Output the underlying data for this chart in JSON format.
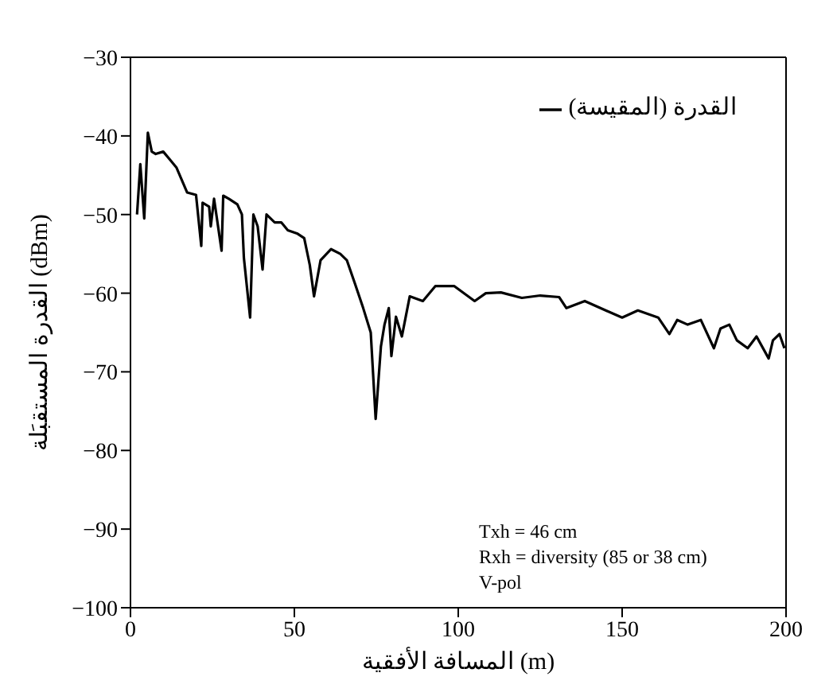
{
  "chart_data": {
    "type": "line",
    "xlabel": "المسافة الأفقية (m)",
    "ylabel": "القدرة المستقبَلة (dBm)",
    "xlim": [
      0,
      200
    ],
    "xticks": [
      0,
      50,
      100,
      150,
      200
    ],
    "ylim": [
      -100,
      -30
    ],
    "yticks": [
      -100,
      -90,
      -80,
      -70,
      -60,
      -50,
      -40,
      -30
    ],
    "legend": "top right",
    "marker": "none",
    "line_style": "solid",
    "annotations": [
      "Txh = 46 cm",
      "Rxh = diversity (85 or 38 cm)",
      "V-pol"
    ],
    "series": [
      {
        "name": "القدرة (المقيسة)",
        "color": "#000000",
        "x": [
          2,
          3,
          4.2,
          5.3,
          6.5,
          7.7,
          10,
          12,
          14,
          17.3,
          20,
          21.6,
          22,
          24,
          24.5,
          25.5,
          27.8,
          28.3,
          30,
          32.6,
          34,
          34.6,
          36.5,
          37.5,
          38.8,
          40.3,
          41.5,
          44,
          46,
          48,
          50.8,
          53,
          54.7,
          56,
          58,
          61.2,
          64,
          66,
          68.5,
          71,
          73.3,
          74.8,
          76.4,
          77.5,
          78.8,
          79.6,
          81,
          82.8,
          85.2,
          89.2,
          93,
          98.8,
          105,
          108.4,
          113,
          119.4,
          125,
          130.8,
          133,
          138.6,
          145,
          150,
          154.8,
          161,
          164.4,
          166.8,
          170,
          174,
          178,
          180,
          182.7,
          185,
          188.3,
          191,
          194.7,
          196,
          198,
          199.5
        ],
        "values": [
          -50,
          -43.6,
          -50.5,
          -39.6,
          -42,
          -42.3,
          -42,
          -43,
          -44,
          -47.2,
          -47.5,
          -54,
          -48.5,
          -49,
          -51.5,
          -48,
          -54.6,
          -47.6,
          -48,
          -48.7,
          -50,
          -55.5,
          -63.1,
          -50,
          -51.5,
          -57,
          -50,
          -51,
          -51,
          -52,
          -52.4,
          -53,
          -56.4,
          -60.4,
          -55.8,
          -54.4,
          -55,
          -55.8,
          -58.8,
          -61.9,
          -65,
          -76,
          -66.8,
          -64,
          -61.9,
          -68,
          -63,
          -65.5,
          -60.4,
          -61,
          -59.1,
          -59.1,
          -61,
          -60,
          -59.9,
          -60.6,
          -60.3,
          -60.5,
          -61.9,
          -61,
          -62.2,
          -63.1,
          -62.2,
          -63.1,
          -65.2,
          -63.4,
          -64,
          -63.4,
          -67,
          -64.5,
          -64,
          -66,
          -67,
          -65.5,
          -68.3,
          -66,
          -65.2,
          -67
        ]
      }
    ]
  }
}
